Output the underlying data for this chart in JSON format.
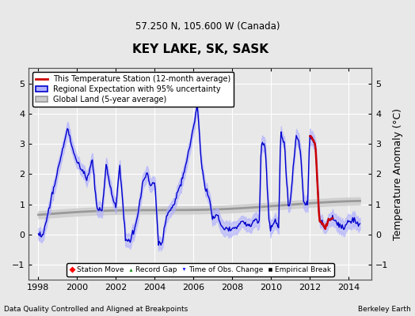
{
  "title": "KEY LAKE, SK, SASK",
  "subtitle": "57.250 N, 105.600 W (Canada)",
  "ylabel": "Temperature Anomaly (°C)",
  "xlabel_left": "Data Quality Controlled and Aligned at Breakpoints",
  "xlabel_right": "Berkeley Earth",
  "ylim": [
    -1.5,
    5.5
  ],
  "xlim": [
    1997.5,
    2015.2
  ],
  "xticks": [
    1998,
    2000,
    2002,
    2004,
    2006,
    2008,
    2010,
    2012,
    2014
  ],
  "yticks": [
    -1,
    0,
    1,
    2,
    3,
    4,
    5
  ],
  "legend_entries": [
    "This Temperature Station (12-month average)",
    "Regional Expectation with 95% uncertainty",
    "Global Land (5-year average)"
  ],
  "station_color": "#cc0000",
  "regional_color": "#0000cc",
  "regional_fill_color": "#b0b0ff",
  "global_color": "#999999",
  "global_fill_color": "#cccccc",
  "bg_color": "#e8e8e8",
  "grid_color": "#ffffff"
}
